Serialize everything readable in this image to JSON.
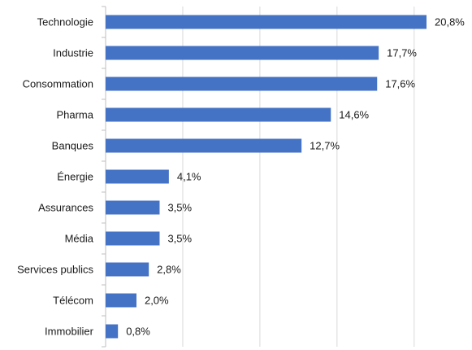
{
  "chart_data": {
    "type": "bar",
    "orientation": "horizontal",
    "title": "",
    "xlabel": "",
    "ylabel": "",
    "xlim": [
      0,
      20.8
    ],
    "grid": "vertical",
    "legend": "none",
    "bar_color": "#4472C4",
    "categories": [
      "Technologie",
      "Industrie",
      "Consommation",
      "Pharma",
      "Banques",
      "Énergie",
      "Assurances",
      "Média",
      "Services publics",
      "Télécom",
      "Immobilier"
    ],
    "values": [
      20.8,
      17.7,
      17.6,
      14.6,
      12.7,
      4.1,
      3.5,
      3.5,
      2.8,
      2.0,
      0.8
    ],
    "value_labels": [
      "20,8%",
      "17,7%",
      "17,6%",
      "14,6%",
      "12,7%",
      "4,1%",
      "3,5%",
      "3,5%",
      "2,8%",
      "2,0%",
      "0,8%"
    ]
  }
}
